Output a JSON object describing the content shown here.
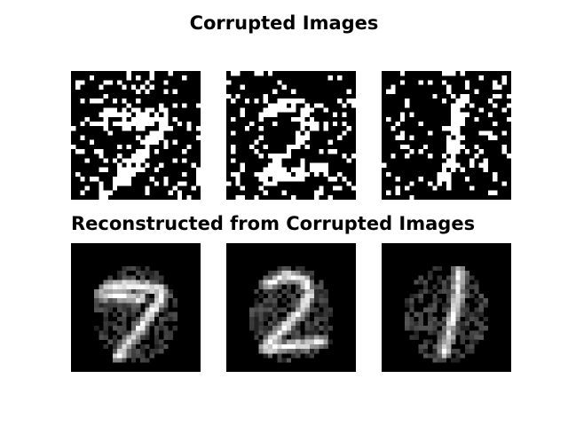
{
  "figure": {
    "title_corrupted": "Corrupted Images",
    "title_reconstructed": "Reconstructed from Corrupted Images",
    "panel_rows": [
      {
        "row": "corrupted",
        "panels": [
          {
            "digit": "7",
            "style": "binary-noise"
          },
          {
            "digit": "2",
            "style": "binary-noise"
          },
          {
            "digit": "1",
            "style": "binary-noise"
          }
        ]
      },
      {
        "row": "reconstructed",
        "panels": [
          {
            "digit": "7",
            "style": "grayscale-blur"
          },
          {
            "digit": "2",
            "style": "grayscale-blur"
          },
          {
            "digit": "1",
            "style": "grayscale-blur"
          }
        ]
      }
    ],
    "colors": {
      "background": "#ffffff",
      "tile_background": "#000000",
      "ink": "#ffffff"
    }
  }
}
